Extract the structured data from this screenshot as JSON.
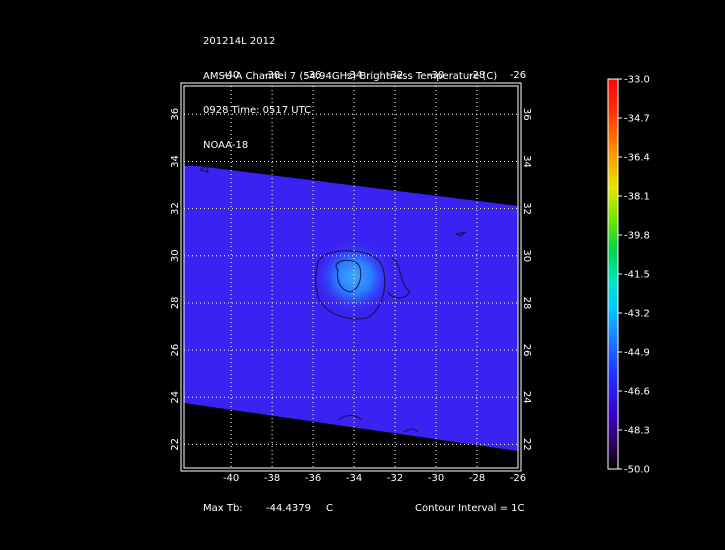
{
  "header": {
    "line1": "201214L 2012",
    "line2": "AMSU-A Channel 7 (54.94GHz) Brightness Temperature (C)",
    "line3": "0928 Time: 0517 UTC",
    "line4": "NOAA-18"
  },
  "footer": {
    "max_tb_label": "Max Tb:",
    "max_tb_value": "-44.4379",
    "max_tb_unit": "C",
    "contour_interval": "Contour Interval = 1C"
  },
  "colors": {
    "field": "#3a22f2",
    "warm_core": "#2a8cff",
    "grid": "#ffffff",
    "frame": "#ffffff"
  },
  "chart_data": {
    "type": "heatmap",
    "x_ticks": [
      "-40",
      "-38",
      "-36",
      "-34",
      "-32",
      "-30",
      "-28",
      "-26"
    ],
    "y_ticks": [
      "22",
      "24",
      "26",
      "28",
      "30",
      "32",
      "34",
      "36"
    ],
    "x_values": [
      -40,
      -38,
      -36,
      -34,
      -32,
      -30,
      -28,
      -26
    ],
    "y_values": [
      22,
      24,
      26,
      28,
      30,
      32,
      34,
      36
    ],
    "xlim": [
      -42.3,
      -26
    ],
    "ylim": [
      21,
      37.2
    ],
    "grid": true,
    "colorbar": {
      "ticks": [
        "-33.0",
        "-34.7",
        "-36.4",
        "-38.1",
        "-39.8",
        "-41.5",
        "-43.2",
        "-44.9",
        "-46.6",
        "-48.3",
        "-50.0"
      ],
      "range": [
        -50.0,
        -33.0
      ]
    },
    "warm_core_center": {
      "lon": -34.0,
      "lat": 29.1
    },
    "max_tb": -44.4379
  }
}
